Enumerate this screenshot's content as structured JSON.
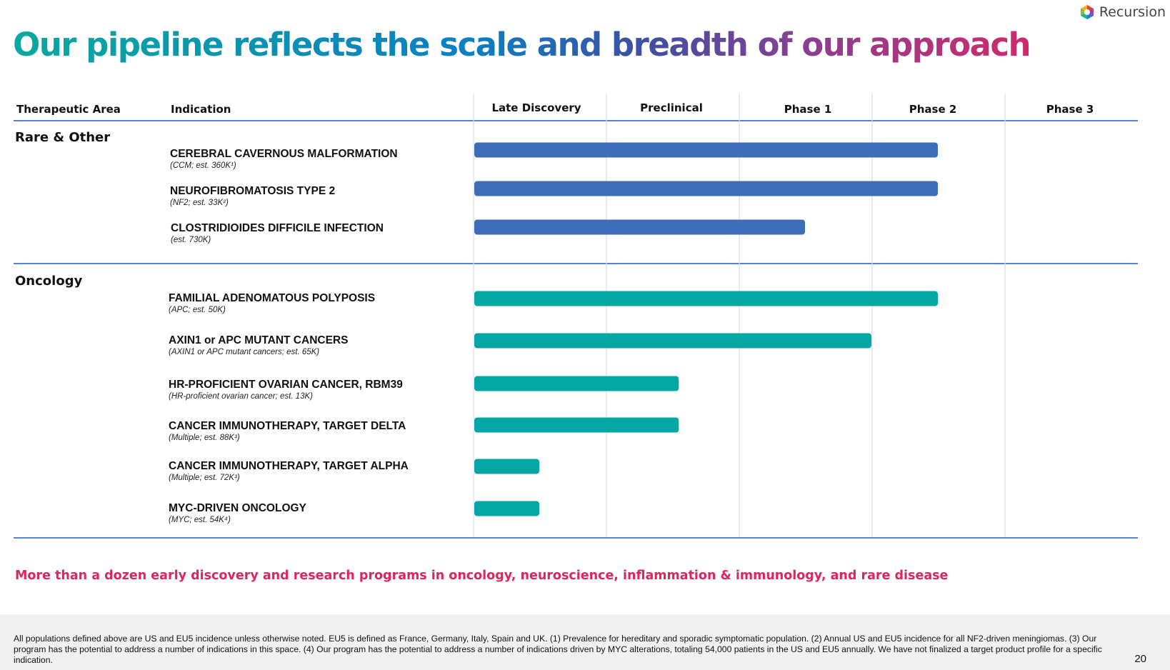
{
  "brand": {
    "name": "Recursion",
    "logo_icon": "hexagon-logo-icon"
  },
  "title": "Our pipeline reflects the scale and breadth of our approach",
  "header": {
    "therapeutic_area": "Therapeutic Area",
    "indication": "Indication",
    "phases": [
      "Late Discovery",
      "Preclinical",
      "Phase 1",
      "Phase 2",
      "Phase 3"
    ]
  },
  "sections": [
    {
      "name": "Rare & Other",
      "color": "#0b6fc2",
      "bar_color": "#3e6db8"
    },
    {
      "name": "Oncology",
      "color": "#0aa3a0",
      "bar_color": "#04a7a4"
    }
  ],
  "chart_data": {
    "type": "bar",
    "orientation": "horizontal",
    "title": "Our pipeline reflects the scale and breadth of our approach",
    "x_categories": [
      "Late Discovery",
      "Preclinical",
      "Phase 1",
      "Phase 2",
      "Phase 3"
    ],
    "xlim": [
      0,
      5
    ],
    "grid": true,
    "note": "bar value = extent of progress measured in stage-column units from start of Late Discovery",
    "rows": [
      {
        "section": 0,
        "name": "CEREBRAL CAVERNOUS MALFORMATION",
        "sub": "(CCM; est. 360K¹)",
        "value": 3.5
      },
      {
        "section": 0,
        "name": "NEUROFIBROMATOSIS TYPE 2",
        "sub": "(NF2; est. 33K²)",
        "value": 3.5
      },
      {
        "section": 0,
        "name": "CLOSTRIDIOIDES DIFFICILE INFECTION",
        "sub": "(est. 730K)",
        "value": 2.5
      },
      {
        "section": 1,
        "name": "FAMILIAL ADENOMATOUS POLYPOSIS",
        "sub": "(APC; est. 50K)",
        "value": 3.5
      },
      {
        "section": 1,
        "name": "AXIN1 or APC MUTANT CANCERS",
        "sub": "(AXIN1 or APC mutant cancers; est. 65K)",
        "value": 3.0
      },
      {
        "section": 1,
        "name": "HR-PROFICIENT OVARIAN CANCER, RBM39",
        "sub": "(HR-proficient ovarian cancer; est. 13K)",
        "value": 1.55
      },
      {
        "section": 1,
        "name": "CANCER IMMUNOTHERAPY, TARGET DELTA",
        "sub": "(Multiple; est. 88K³)",
        "value": 1.55
      },
      {
        "section": 1,
        "name": "CANCER IMMUNOTHERAPY, TARGET ALPHA",
        "sub": "(Multiple; est. 72K³)",
        "value": 0.5
      },
      {
        "section": 1,
        "name": "MYC-DRIVEN ONCOLOGY",
        "sub": "(MYC; est. 54K⁴)",
        "value": 0.5
      }
    ]
  },
  "note": "More than a dozen early discovery and research programs in oncology, neuroscience, inflammation & immunology, and rare disease",
  "footnote": "All populations defined above are US and EU5 incidence unless otherwise noted. EU5 is defined as France, Germany, Italy, Spain and UK. (1) Prevalence for hereditary and sporadic symptomatic population. (2) Annual US and EU5 incidence for all NF2-driven meningiomas. (3) Our program has the potential to address a number of indications in this space. (4) Our program has the potential to address a number of indications driven by MYC alterations, totaling 54,000 patients in the US and EU5 annually. We have not finalized a target product profile for a specific indication.",
  "page_number": "20"
}
